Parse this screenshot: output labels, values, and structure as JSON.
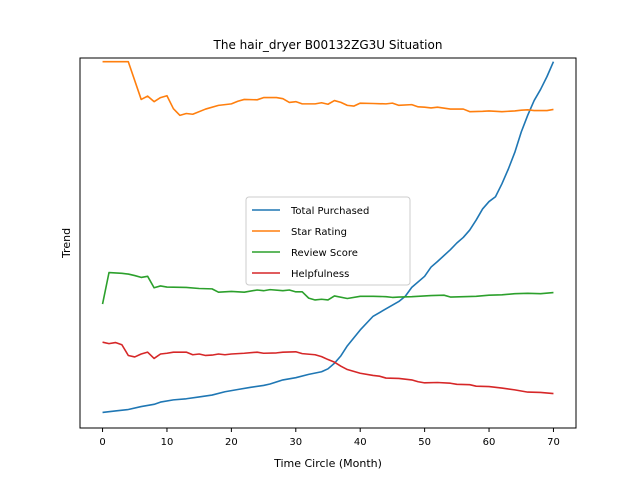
{
  "chart_data": {
    "type": "line",
    "title": "The hair_dryer B00132ZG3U Situation",
    "xlabel": "Time Circle (Month)",
    "ylabel": "Trend",
    "xlim": [
      -3.5,
      73.5
    ],
    "ylim": [
      0,
      1
    ],
    "x_ticks": [
      0,
      10,
      20,
      30,
      40,
      50,
      60,
      70
    ],
    "y_ticks_shown": false,
    "grid": false,
    "legend_position": "center",
    "series": [
      {
        "name": "Total Purchased",
        "color": "#1f77b4",
        "points": [
          [
            0,
            0.042
          ],
          [
            2,
            0.046
          ],
          [
            4,
            0.05
          ],
          [
            6,
            0.058
          ],
          [
            8,
            0.064
          ],
          [
            9,
            0.07
          ],
          [
            11,
            0.076
          ],
          [
            13,
            0.079
          ],
          [
            15,
            0.084
          ],
          [
            17,
            0.089
          ],
          [
            19,
            0.098
          ],
          [
            21,
            0.104
          ],
          [
            23,
            0.11
          ],
          [
            25,
            0.115
          ],
          [
            26,
            0.119
          ],
          [
            28,
            0.13
          ],
          [
            30,
            0.136
          ],
          [
            32,
            0.145
          ],
          [
            34,
            0.152
          ],
          [
            35,
            0.16
          ],
          [
            36,
            0.175
          ],
          [
            37,
            0.195
          ],
          [
            38,
            0.222
          ],
          [
            40,
            0.265
          ],
          [
            42,
            0.302
          ],
          [
            44,
            0.322
          ],
          [
            46,
            0.342
          ],
          [
            47,
            0.356
          ],
          [
            48,
            0.38
          ],
          [
            50,
            0.41
          ],
          [
            51,
            0.435
          ],
          [
            52,
            0.45
          ],
          [
            54,
            0.482
          ],
          [
            55,
            0.5
          ],
          [
            56,
            0.515
          ],
          [
            57,
            0.535
          ],
          [
            58,
            0.562
          ],
          [
            59,
            0.592
          ],
          [
            60,
            0.612
          ],
          [
            61,
            0.625
          ],
          [
            62,
            0.66
          ],
          [
            63,
            0.7
          ],
          [
            64,
            0.745
          ],
          [
            65,
            0.8
          ],
          [
            66,
            0.845
          ],
          [
            67,
            0.885
          ],
          [
            68,
            0.915
          ],
          [
            69,
            0.95
          ],
          [
            70,
            0.99
          ]
        ]
      },
      {
        "name": "Star Rating",
        "color": "#ff7f0e",
        "points": [
          [
            0,
            0.99
          ],
          [
            4,
            0.99
          ],
          [
            6,
            0.888
          ],
          [
            7,
            0.897
          ],
          [
            8,
            0.882
          ],
          [
            9,
            0.893
          ],
          [
            10,
            0.898
          ],
          [
            11,
            0.863
          ],
          [
            12,
            0.845
          ],
          [
            13,
            0.85
          ],
          [
            14,
            0.848
          ],
          [
            16,
            0.862
          ],
          [
            18,
            0.872
          ],
          [
            20,
            0.876
          ],
          [
            21,
            0.883
          ],
          [
            22,
            0.888
          ],
          [
            24,
            0.887
          ],
          [
            25,
            0.893
          ],
          [
            27,
            0.893
          ],
          [
            28,
            0.89
          ],
          [
            29,
            0.88
          ],
          [
            30,
            0.882
          ],
          [
            31,
            0.876
          ],
          [
            33,
            0.876
          ],
          [
            34,
            0.879
          ],
          [
            35,
            0.875
          ],
          [
            36,
            0.885
          ],
          [
            37,
            0.88
          ],
          [
            38,
            0.872
          ],
          [
            39,
            0.87
          ],
          [
            40,
            0.878
          ],
          [
            42,
            0.877
          ],
          [
            44,
            0.876
          ],
          [
            45,
            0.878
          ],
          [
            46,
            0.872
          ],
          [
            48,
            0.874
          ],
          [
            49,
            0.868
          ],
          [
            50,
            0.867
          ],
          [
            51,
            0.865
          ],
          [
            52,
            0.867
          ],
          [
            54,
            0.862
          ],
          [
            56,
            0.862
          ],
          [
            57,
            0.855
          ],
          [
            59,
            0.856
          ],
          [
            60,
            0.857
          ],
          [
            62,
            0.855
          ],
          [
            64,
            0.857
          ],
          [
            65,
            0.859
          ],
          [
            66,
            0.86
          ],
          [
            67,
            0.858
          ],
          [
            69,
            0.858
          ],
          [
            70,
            0.861
          ]
        ]
      },
      {
        "name": "Review Score",
        "color": "#2ca02c",
        "points": [
          [
            0,
            0.335
          ],
          [
            1,
            0.42
          ],
          [
            3,
            0.418
          ],
          [
            4,
            0.416
          ],
          [
            5,
            0.412
          ],
          [
            6,
            0.407
          ],
          [
            7,
            0.41
          ],
          [
            8,
            0.379
          ],
          [
            9,
            0.384
          ],
          [
            10,
            0.381
          ],
          [
            13,
            0.38
          ],
          [
            15,
            0.377
          ],
          [
            17,
            0.376
          ],
          [
            18,
            0.367
          ],
          [
            19,
            0.368
          ],
          [
            20,
            0.369
          ],
          [
            22,
            0.367
          ],
          [
            24,
            0.373
          ],
          [
            25,
            0.371
          ],
          [
            26,
            0.374
          ],
          [
            28,
            0.371
          ],
          [
            29,
            0.373
          ],
          [
            30,
            0.368
          ],
          [
            31,
            0.368
          ],
          [
            32,
            0.351
          ],
          [
            33,
            0.346
          ],
          [
            34,
            0.348
          ],
          [
            35,
            0.346
          ],
          [
            36,
            0.357
          ],
          [
            38,
            0.35
          ],
          [
            40,
            0.356
          ],
          [
            42,
            0.356
          ],
          [
            44,
            0.355
          ],
          [
            45,
            0.353
          ],
          [
            46,
            0.354
          ],
          [
            48,
            0.355
          ],
          [
            50,
            0.357
          ],
          [
            51,
            0.358
          ],
          [
            53,
            0.359
          ],
          [
            54,
            0.354
          ],
          [
            56,
            0.355
          ],
          [
            58,
            0.356
          ],
          [
            60,
            0.359
          ],
          [
            62,
            0.36
          ],
          [
            64,
            0.363
          ],
          [
            66,
            0.364
          ],
          [
            68,
            0.363
          ],
          [
            70,
            0.366
          ]
        ]
      },
      {
        "name": "Helpfulness",
        "color": "#d62728",
        "points": [
          [
            0,
            0.232
          ],
          [
            1,
            0.228
          ],
          [
            2,
            0.231
          ],
          [
            3,
            0.225
          ],
          [
            4,
            0.196
          ],
          [
            5,
            0.192
          ],
          [
            6,
            0.2
          ],
          [
            7,
            0.205
          ],
          [
            8,
            0.188
          ],
          [
            9,
            0.2
          ],
          [
            10,
            0.202
          ],
          [
            11,
            0.205
          ],
          [
            13,
            0.205
          ],
          [
            14,
            0.198
          ],
          [
            15,
            0.2
          ],
          [
            16,
            0.196
          ],
          [
            17,
            0.197
          ],
          [
            18,
            0.2
          ],
          [
            19,
            0.198
          ],
          [
            20,
            0.2
          ],
          [
            22,
            0.202
          ],
          [
            24,
            0.205
          ],
          [
            25,
            0.202
          ],
          [
            27,
            0.203
          ],
          [
            28,
            0.205
          ],
          [
            30,
            0.206
          ],
          [
            31,
            0.201
          ],
          [
            33,
            0.198
          ],
          [
            34,
            0.193
          ],
          [
            35,
            0.185
          ],
          [
            36,
            0.178
          ],
          [
            37,
            0.167
          ],
          [
            38,
            0.158
          ],
          [
            40,
            0.148
          ],
          [
            42,
            0.142
          ],
          [
            43,
            0.14
          ],
          [
            44,
            0.135
          ],
          [
            46,
            0.134
          ],
          [
            48,
            0.13
          ],
          [
            49,
            0.125
          ],
          [
            50,
            0.122
          ],
          [
            52,
            0.123
          ],
          [
            54,
            0.121
          ],
          [
            55,
            0.118
          ],
          [
            57,
            0.117
          ],
          [
            58,
            0.113
          ],
          [
            60,
            0.112
          ],
          [
            62,
            0.108
          ],
          [
            64,
            0.103
          ],
          [
            65,
            0.1
          ],
          [
            66,
            0.097
          ],
          [
            68,
            0.096
          ],
          [
            70,
            0.093
          ]
        ]
      }
    ]
  }
}
